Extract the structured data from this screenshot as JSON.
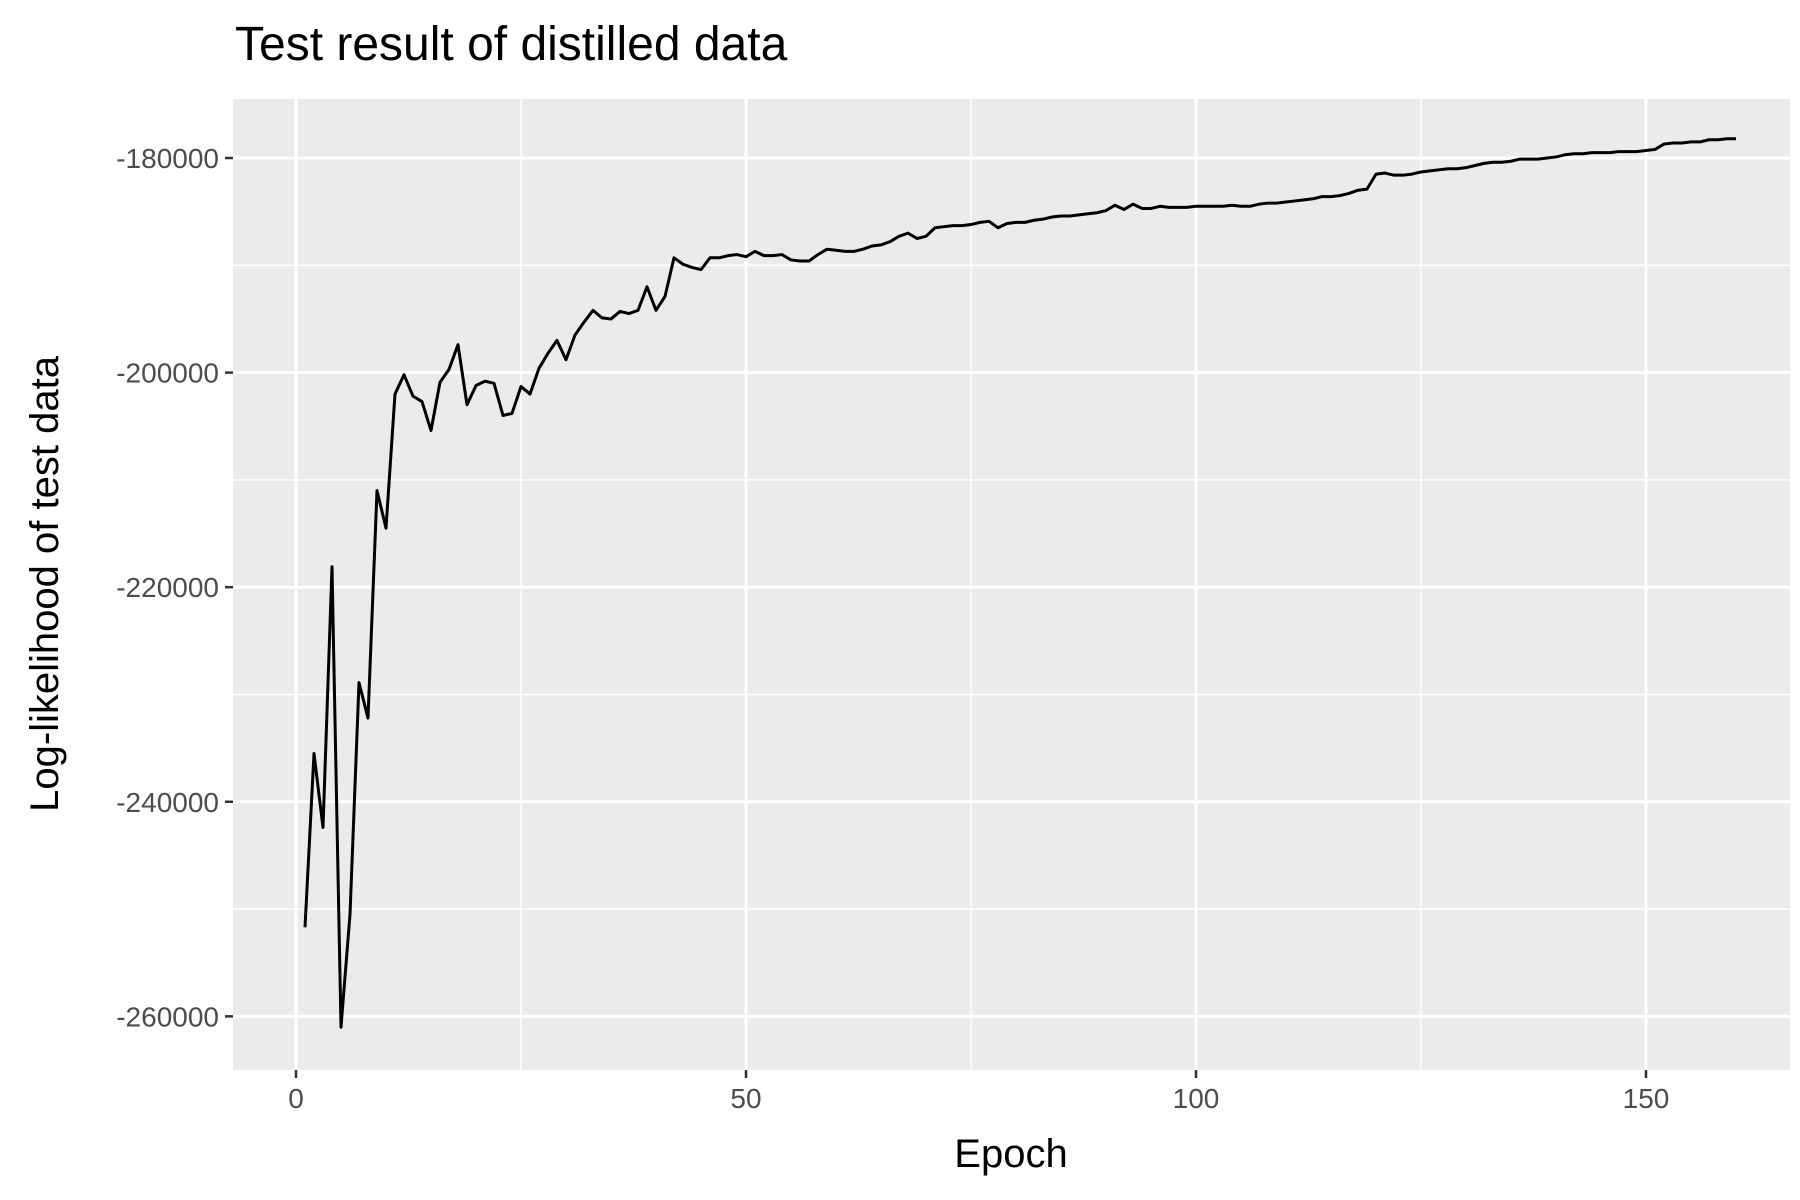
{
  "chart_data": {
    "type": "line",
    "title": "Test result of distilled data",
    "xlabel": "Epoch",
    "ylabel": "Log-likelihood of test data",
    "xlim": [
      -7,
      166
    ],
    "ylim": [
      -265000,
      -174500
    ],
    "x_ticks": [
      0,
      50,
      100,
      150
    ],
    "x_tick_labels": [
      "0",
      "50",
      "100",
      "150"
    ],
    "y_ticks": [
      -260000,
      -240000,
      -220000,
      -200000,
      -180000
    ],
    "y_tick_labels": [
      "-260000",
      "-240000",
      "-220000",
      "-200000",
      "-180000"
    ],
    "grid": true,
    "legend": "none",
    "panel_color": "#ebebeb",
    "line_color": "#000000",
    "series": [
      {
        "x": [
          1,
          2,
          3,
          4,
          5,
          6,
          7,
          8,
          9,
          10,
          11,
          12,
          13,
          14,
          15,
          16,
          17,
          18,
          19,
          20,
          21,
          22,
          23,
          24,
          25,
          26,
          27,
          28,
          29,
          30,
          31,
          32,
          33,
          34,
          35,
          36,
          37,
          38,
          39,
          40,
          41,
          42,
          43,
          44,
          45,
          46,
          47,
          48,
          49,
          50,
          51,
          52,
          53,
          54,
          55,
          56,
          57,
          58,
          59,
          60,
          61,
          62,
          63,
          64,
          65,
          66,
          67,
          68,
          69,
          70,
          71,
          72,
          73,
          74,
          75,
          76,
          77,
          78,
          79,
          80,
          81,
          82,
          83,
          84,
          85,
          86,
          87,
          88,
          89,
          90,
          91,
          92,
          93,
          94,
          95,
          96,
          97,
          98,
          99,
          100,
          101,
          102,
          103,
          104,
          105,
          106,
          107,
          108,
          109,
          110,
          111,
          112,
          113,
          114,
          115,
          116,
          117,
          118,
          119,
          120,
          121,
          122,
          123,
          124,
          125,
          126,
          127,
          128,
          129,
          130,
          131,
          132,
          133,
          134,
          135,
          136,
          137,
          138,
          139,
          140,
          141,
          142,
          143,
          144,
          145,
          146,
          147,
          148,
          149,
          150,
          151,
          152,
          153,
          154,
          155,
          156,
          157,
          158,
          159,
          160
        ],
        "y": [
          -251700,
          -235500,
          -242400,
          -218100,
          -261000,
          -250500,
          -228900,
          -232200,
          -211000,
          -214500,
          -202000,
          -200200,
          -202200,
          -202700,
          -205400,
          -200900,
          -199700,
          -197400,
          -203000,
          -201200,
          -200800,
          -201000,
          -204000,
          -203800,
          -201300,
          -202000,
          -199600,
          -198200,
          -197000,
          -198800,
          -196500,
          -195300,
          -194200,
          -194900,
          -195000,
          -194300,
          -194500,
          -194200,
          -192000,
          -194200,
          -192900,
          -189300,
          -189900,
          -190200,
          -190400,
          -189300,
          -189300,
          -189100,
          -189000,
          -189200,
          -188700,
          -189100,
          -189100,
          -189000,
          -189500,
          -189600,
          -189600,
          -189000,
          -188500,
          -188600,
          -188700,
          -188700,
          -188500,
          -188200,
          -188100,
          -187800,
          -187300,
          -187000,
          -187500,
          -187300,
          -186500,
          -186400,
          -186300,
          -186300,
          -186200,
          -186000,
          -185900,
          -186500,
          -186100,
          -186000,
          -186000,
          -185800,
          -185700,
          -185500,
          -185400,
          -185400,
          -185300,
          -185200,
          -185100,
          -184900,
          -184400,
          -184800,
          -184300,
          -184700,
          -184700,
          -184500,
          -184600,
          -184600,
          -184600,
          -184500,
          -184500,
          -184500,
          -184500,
          -184400,
          -184500,
          -184500,
          -184300,
          -184200,
          -184200,
          -184100,
          -184000,
          -183900,
          -183800,
          -183600,
          -183600,
          -183500,
          -183300,
          -183000,
          -182900,
          -181500,
          -181400,
          -181600,
          -181600,
          -181500,
          -181300,
          -181200,
          -181100,
          -181000,
          -181000,
          -180900,
          -180700,
          -180500,
          -180400,
          -180400,
          -180300,
          -180100,
          -180100,
          -180100,
          -180000,
          -179900,
          -179700,
          -179600,
          -179600,
          -179500,
          -179500,
          -179500,
          -179400,
          -179400,
          -179400,
          -179300,
          -179200,
          -178700,
          -178600,
          -178600,
          -178500,
          -178500,
          -178300,
          -178300,
          -178200,
          -178200
        ]
      }
    ]
  }
}
